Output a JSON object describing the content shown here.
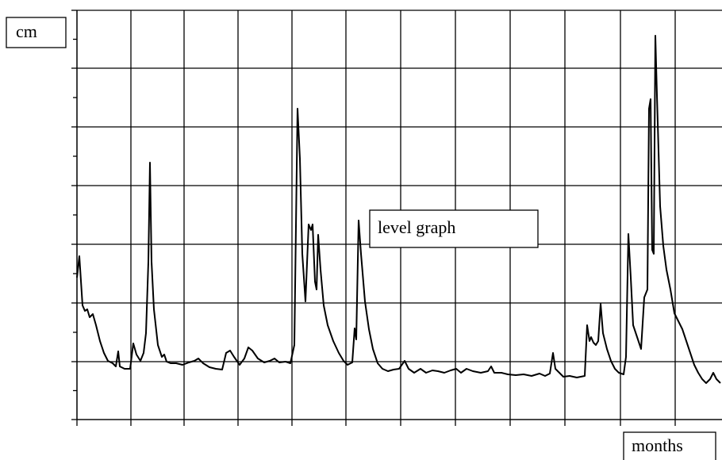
{
  "chart_data": {
    "type": "line",
    "y_label": "cm",
    "x_label": "months",
    "annotation": "level graph",
    "xlim": [
      0,
      813
    ],
    "ylim": [
      0,
      516
    ],
    "xticks": [
      0,
      68,
      135,
      203,
      271,
      339,
      408,
      477,
      546,
      615,
      685,
      754
    ],
    "yticks": [
      0,
      73,
      147,
      221,
      295,
      369,
      443,
      516
    ],
    "grid": true,
    "series": [
      {
        "color": "#000000",
        "x": [
          0,
          3,
          7,
          10,
          13,
          16,
          20,
          24,
          29,
          34,
          39,
          45,
          49,
          52,
          54,
          60,
          67,
          71,
          75,
          80,
          84,
          87,
          90,
          92,
          94,
          97,
          102,
          107,
          110,
          113,
          118,
          125,
          133,
          141,
          148,
          153,
          159,
          167,
          175,
          183,
          188,
          193,
          198,
          205,
          211,
          216,
          221,
          228,
          236,
          243,
          249,
          255,
          263,
          269,
          274,
          278,
          281,
          284,
          288,
          292,
          295,
          297,
          300,
          302,
          304,
          307,
          311,
          316,
          323,
          330,
          336,
          341,
          347,
          350,
          352,
          355,
          358,
          363,
          368,
          373,
          379,
          385,
          392,
          399,
          406,
          413,
          418,
          425,
          433,
          440,
          448,
          455,
          463,
          471,
          478,
          484,
          491,
          499,
          509,
          518,
          522,
          526,
          535,
          543,
          553,
          563,
          573,
          583,
          590,
          596,
          600,
          603,
          608,
          613,
          621,
          630,
          635,
          640,
          643,
          646,
          648,
          651,
          654,
          657,
          660,
          663,
          668,
          673,
          678,
          683,
          689,
          692,
          695,
          698,
          701,
          706,
          711,
          715,
          719,
          721,
          723,
          725,
          727,
          729,
          731,
          735,
          739,
          743,
          748,
          753,
          758,
          763,
          768,
          773,
          778,
          783,
          788,
          793,
          798,
          802,
          806,
          811
        ],
        "values": [
          179,
          206,
          144,
          137,
          139,
          129,
          133,
          119,
          99,
          84,
          74,
          71,
          67,
          86,
          67,
          64,
          64,
          96,
          82,
          74,
          84,
          109,
          199,
          324,
          199,
          139,
          94,
          79,
          82,
          73,
          71,
          71,
          69,
          72,
          74,
          77,
          71,
          66,
          64,
          63,
          84,
          87,
          79,
          69,
          77,
          91,
          87,
          77,
          72,
          74,
          77,
          72,
          73,
          71,
          94,
          392,
          329,
          209,
          149,
          246,
          239,
          246,
          174,
          164,
          233,
          189,
          144,
          119,
          99,
          84,
          74,
          69,
          72,
          115,
          101,
          251,
          209,
          149,
          114,
          89,
          71,
          64,
          61,
          63,
          64,
          74,
          64,
          59,
          64,
          59,
          62,
          61,
          59,
          62,
          64,
          59,
          64,
          61,
          59,
          61,
          67,
          59,
          59,
          57,
          56,
          57,
          55,
          58,
          55,
          58,
          84,
          64,
          59,
          54,
          55,
          53,
          54,
          55,
          119,
          99,
          104,
          97,
          94,
          99,
          146,
          109,
          89,
          74,
          64,
          59,
          57,
          79,
          234,
          179,
          119,
          104,
          89,
          154,
          164,
          392,
          404,
          214,
          209,
          484,
          409,
          269,
          219,
          189,
          164,
          134,
          124,
          114,
          99,
          84,
          69,
          59,
          51,
          46,
          51,
          59,
          51,
          46
        ]
      }
    ]
  }
}
